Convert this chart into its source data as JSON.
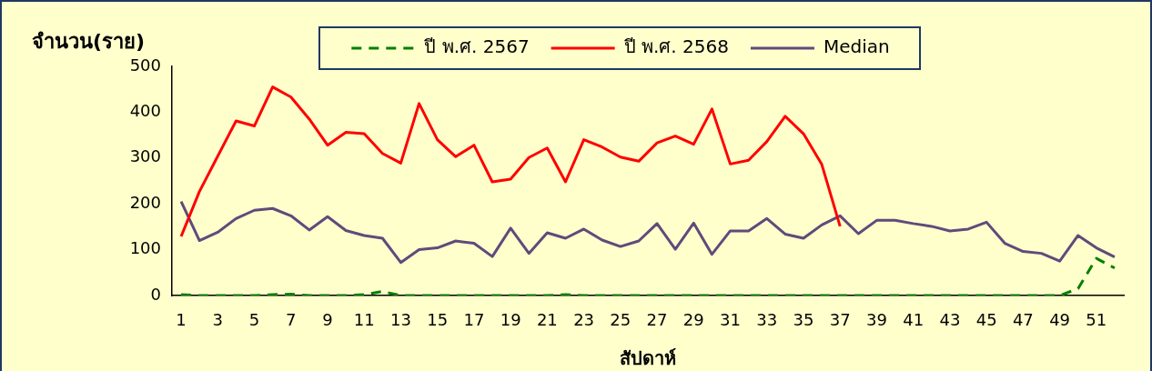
{
  "chart_data": {
    "type": "line",
    "xlabel": "สัปดาห์",
    "ylabel": "จำนวน(ราย)",
    "x": [
      1,
      2,
      3,
      4,
      5,
      6,
      7,
      8,
      9,
      10,
      11,
      12,
      13,
      14,
      15,
      16,
      17,
      18,
      19,
      20,
      21,
      22,
      23,
      24,
      25,
      26,
      27,
      28,
      29,
      30,
      31,
      32,
      33,
      34,
      35,
      36,
      37,
      38,
      39,
      40,
      41,
      42,
      43,
      44,
      45,
      46,
      47,
      48,
      49,
      50,
      51,
      52
    ],
    "series": [
      {
        "name": "ปี พ.ศ. 2567",
        "color": "#008000",
        "line_style": "dashed",
        "values": [
          2,
          0,
          0,
          0,
          0,
          2,
          3,
          0,
          0,
          0,
          2,
          9,
          0,
          0,
          0,
          0,
          0,
          0,
          0,
          0,
          0,
          2,
          0,
          0,
          0,
          0,
          0,
          0,
          0,
          0,
          0,
          0,
          0,
          0,
          0,
          0,
          0,
          0,
          0,
          0,
          0,
          0,
          0,
          0,
          0,
          0,
          0,
          0,
          0,
          15,
          81,
          60
        ]
      },
      {
        "name": "ปี พ.ศ. 2568",
        "color": "#ff0000",
        "values": [
          129,
          227,
          304,
          381,
          370,
          455,
          433,
          385,
          328,
          356,
          353,
          310,
          289,
          419,
          340,
          303,
          328,
          248,
          254,
          301,
          322,
          248,
          340,
          324,
          302,
          293,
          333,
          348,
          330,
          407,
          287,
          295,
          336,
          391,
          353,
          286,
          151,
          null,
          null,
          null,
          null,
          null,
          null,
          null,
          null,
          null,
          null,
          null,
          null,
          null,
          null,
          null
        ]
      },
      {
        "name": "Median",
        "color": "#604a7b",
        "values": [
          205,
          120,
          138,
          168,
          186,
          190,
          174,
          143,
          172,
          142,
          131,
          125,
          72,
          100,
          104,
          119,
          114,
          85,
          147,
          92,
          137,
          125,
          145,
          121,
          107,
          119,
          157,
          101,
          158,
          90,
          141,
          141,
          168,
          134,
          125,
          154,
          174,
          135,
          164,
          164,
          157,
          151,
          141,
          145,
          160,
          114,
          96,
          92,
          75,
          131,
          104,
          84
        ]
      }
    ],
    "xlim": [
      0.5,
      52.5
    ],
    "xticks": [
      1,
      3,
      5,
      7,
      9,
      11,
      13,
      15,
      17,
      19,
      21,
      23,
      25,
      27,
      29,
      31,
      33,
      35,
      37,
      39,
      41,
      43,
      45,
      47,
      49,
      51
    ],
    "ylim": [
      0,
      500
    ],
    "yticks": [
      0,
      100,
      200,
      300,
      400,
      500
    ],
    "legend": "top",
    "marker": "none",
    "line_style": "solid"
  }
}
